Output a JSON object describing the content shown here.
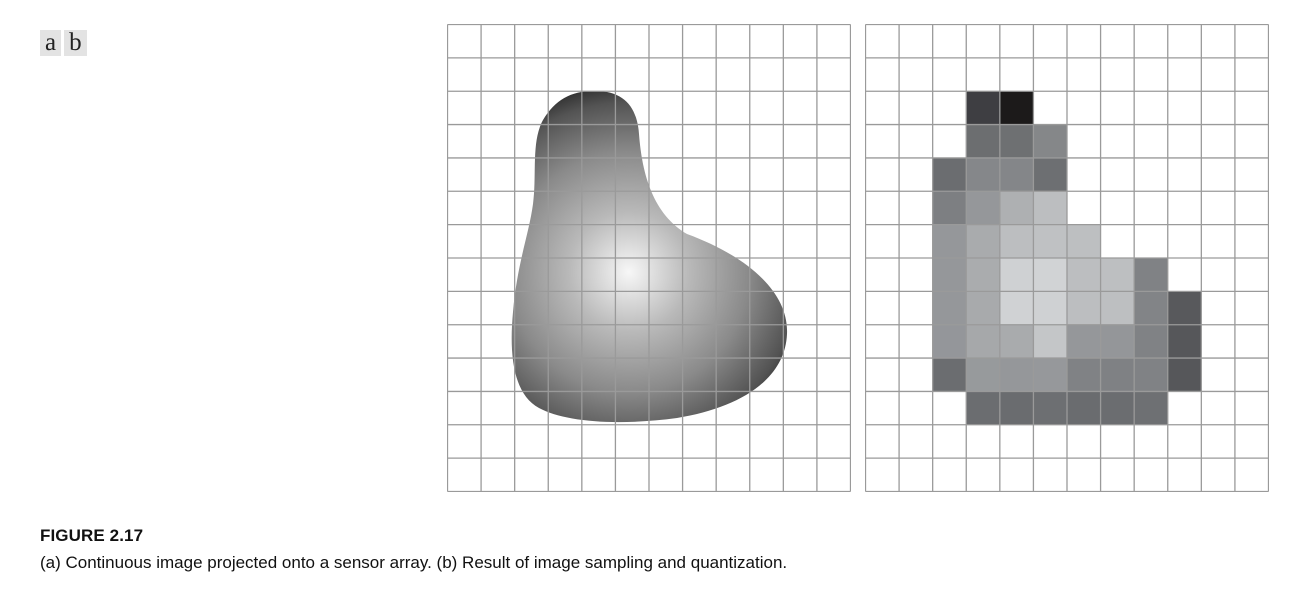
{
  "panel_labels": [
    "a",
    "b"
  ],
  "figure": {
    "title": "FIGURE 2.17",
    "caption": "(a) Continuous image projected onto a sensor array. (b) Result of image sampling and quantization."
  },
  "grid": {
    "rows": 14,
    "cols": 12,
    "line_color": "#9a9a9a"
  },
  "quantized_cells": [
    {
      "r": 2,
      "c": 3,
      "color": "#3e3e42"
    },
    {
      "r": 2,
      "c": 4,
      "color": "#1c1a1a"
    },
    {
      "r": 3,
      "c": 3,
      "color": "#6c6e70"
    },
    {
      "r": 3,
      "c": 4,
      "color": "#6e7072"
    },
    {
      "r": 3,
      "c": 5,
      "color": "#858789"
    },
    {
      "r": 4,
      "c": 2,
      "color": "#6b6d70"
    },
    {
      "r": 4,
      "c": 3,
      "color": "#85878a"
    },
    {
      "r": 4,
      "c": 4,
      "color": "#848689"
    },
    {
      "r": 4,
      "c": 5,
      "color": "#6d6f72"
    },
    {
      "r": 5,
      "c": 2,
      "color": "#7d7f82"
    },
    {
      "r": 5,
      "c": 3,
      "color": "#95979a"
    },
    {
      "r": 5,
      "c": 4,
      "color": "#aeb0b2"
    },
    {
      "r": 5,
      "c": 5,
      "color": "#bcbec0"
    },
    {
      "r": 6,
      "c": 2,
      "color": "#95979a"
    },
    {
      "r": 6,
      "c": 3,
      "color": "#a9abad"
    },
    {
      "r": 6,
      "c": 4,
      "color": "#bcbec0"
    },
    {
      "r": 6,
      "c": 5,
      "color": "#bfc1c3"
    },
    {
      "r": 6,
      "c": 6,
      "color": "#bdbfc1"
    },
    {
      "r": 7,
      "c": 2,
      "color": "#95979a"
    },
    {
      "r": 7,
      "c": 3,
      "color": "#aaacae"
    },
    {
      "r": 7,
      "c": 4,
      "color": "#cfd1d3"
    },
    {
      "r": 7,
      "c": 5,
      "color": "#d1d3d5"
    },
    {
      "r": 7,
      "c": 6,
      "color": "#bcbec0"
    },
    {
      "r": 7,
      "c": 7,
      "color": "#bdbfc1"
    },
    {
      "r": 7,
      "c": 8,
      "color": "#808285"
    },
    {
      "r": 8,
      "c": 2,
      "color": "#95979a"
    },
    {
      "r": 8,
      "c": 3,
      "color": "#a8aaac"
    },
    {
      "r": 8,
      "c": 4,
      "color": "#d0d2d4"
    },
    {
      "r": 8,
      "c": 5,
      "color": "#cfd1d3"
    },
    {
      "r": 8,
      "c": 6,
      "color": "#bcbec0"
    },
    {
      "r": 8,
      "c": 7,
      "color": "#bdbfc1"
    },
    {
      "r": 8,
      "c": 8,
      "color": "#828487"
    },
    {
      "r": 8,
      "c": 9,
      "color": "#58595c"
    },
    {
      "r": 9,
      "c": 2,
      "color": "#94969a"
    },
    {
      "r": 9,
      "c": 3,
      "color": "#a6a8aa"
    },
    {
      "r": 9,
      "c": 4,
      "color": "#a9abad"
    },
    {
      "r": 9,
      "c": 5,
      "color": "#c4c6c8"
    },
    {
      "r": 9,
      "c": 6,
      "color": "#95979a"
    },
    {
      "r": 9,
      "c": 7,
      "color": "#949699"
    },
    {
      "r": 9,
      "c": 8,
      "color": "#808285"
    },
    {
      "r": 9,
      "c": 9,
      "color": "#56575a"
    },
    {
      "r": 10,
      "c": 2,
      "color": "#6b6d70"
    },
    {
      "r": 10,
      "c": 3,
      "color": "#979a9c"
    },
    {
      "r": 10,
      "c": 4,
      "color": "#95979a"
    },
    {
      "r": 10,
      "c": 5,
      "color": "#96989b"
    },
    {
      "r": 10,
      "c": 6,
      "color": "#808285"
    },
    {
      "r": 10,
      "c": 7,
      "color": "#7f8184"
    },
    {
      "r": 10,
      "c": 8,
      "color": "#808285"
    },
    {
      "r": 10,
      "c": 9,
      "color": "#56575a"
    },
    {
      "r": 11,
      "c": 3,
      "color": "#6b6d70"
    },
    {
      "r": 11,
      "c": 4,
      "color": "#6a6c6f"
    },
    {
      "r": 11,
      "c": 5,
      "color": "#6d6f72"
    },
    {
      "r": 11,
      "c": 6,
      "color": "#6a6c6f"
    },
    {
      "r": 11,
      "c": 7,
      "color": "#6b6d70"
    },
    {
      "r": 11,
      "c": 8,
      "color": "#6e7073"
    }
  ]
}
